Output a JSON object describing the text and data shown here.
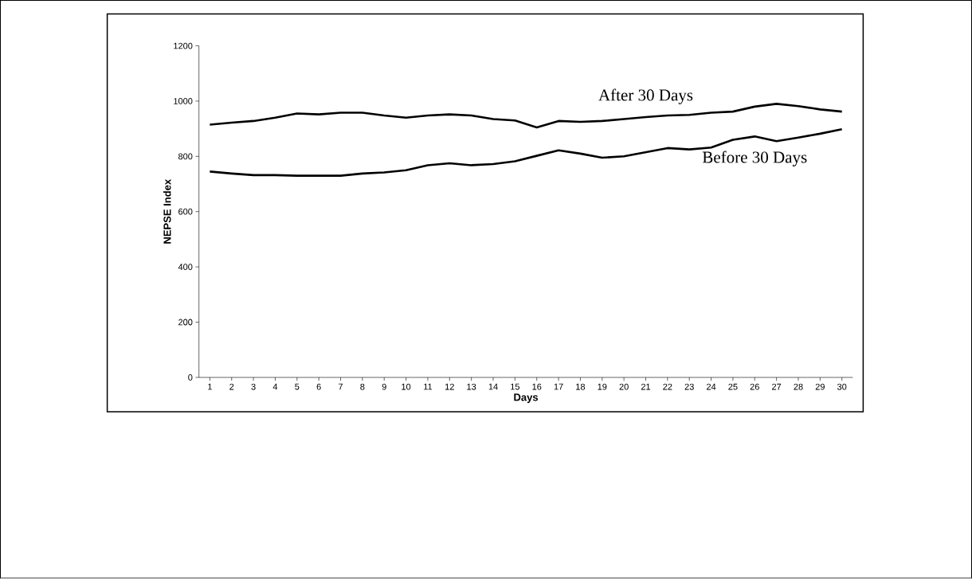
{
  "chart_data": {
    "type": "line",
    "xlabel": "Days",
    "ylabel": "NEPSE Index",
    "categories": [
      "1",
      "2",
      "3",
      "4",
      "5",
      "6",
      "7",
      "8",
      "9",
      "10",
      "11",
      "12",
      "13",
      "14",
      "15",
      "16",
      "17",
      "18",
      "19",
      "20",
      "21",
      "22",
      "23",
      "24",
      "25",
      "26",
      "27",
      "28",
      "29",
      "30"
    ],
    "ylim": [
      0,
      1200
    ],
    "yticks": [
      0,
      200,
      400,
      600,
      800,
      1000,
      1200
    ],
    "grid": false,
    "legend": false,
    "marker": "none",
    "line_style": "solid",
    "series": [
      {
        "name": "After 30 Days",
        "color": "#000000",
        "values": [
          915,
          922,
          928,
          940,
          955,
          952,
          958,
          958,
          948,
          940,
          948,
          952,
          948,
          935,
          930,
          905,
          928,
          925,
          928,
          935,
          942,
          948,
          950,
          958,
          962,
          980,
          990,
          982,
          970,
          962
        ]
      },
      {
        "name": "Before 30 Days",
        "color": "#000000",
        "values": [
          745,
          738,
          732,
          732,
          730,
          730,
          730,
          738,
          742,
          750,
          768,
          775,
          768,
          772,
          782,
          802,
          822,
          810,
          795,
          800,
          815,
          830,
          825,
          832,
          860,
          872,
          855,
          868,
          882,
          898
        ]
      }
    ]
  }
}
